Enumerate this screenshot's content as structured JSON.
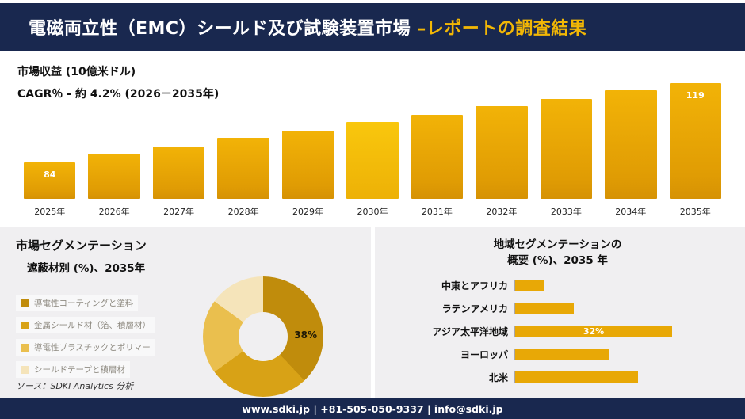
{
  "colors": {
    "navy": "#19284f",
    "gold_accent": "#f2b705",
    "bar_gold": "#e9a907",
    "panel_bg": "#f0eff1"
  },
  "header": {
    "title_main": "電磁両立性（EMC）シールド及び試験装置市場 ",
    "title_accent": "–レポートの調査結果"
  },
  "footer": {
    "text": "www.sdki.jp | +81-505-050-9337 | info@sdki.jp"
  },
  "source_note": "ソース：SDKI Analytics 分析",
  "chart_data": [
    {
      "type": "bar",
      "title": "市場収益 (10億米ドル)",
      "subtitle": "CAGR％ - 約 4.2% (2026－2035年)",
      "categories": [
        "2025年",
        "2026年",
        "2027年",
        "2028年",
        "2029年",
        "2030年",
        "2031年",
        "2032年",
        "2033年",
        "2034年",
        "2035年"
      ],
      "values": [
        84,
        88,
        91,
        95,
        98,
        102,
        105,
        109,
        112,
        116,
        119
      ],
      "value_labels": [
        "84",
        "",
        "",
        "",
        "",
        "",
        "",
        "",
        "",
        "",
        "119"
      ],
      "ylabel": "10億米ドル",
      "legend_position": "none",
      "grid": false
    },
    {
      "type": "pie",
      "title_line1": "市場セグメンテーション",
      "title_line2": "遮蔽材別 (%)、2035年",
      "hole": true,
      "segments": [
        {
          "label": "導電性コーティングと塗料",
          "value": 38,
          "color": "#c08c0c",
          "data_label": "38%"
        },
        {
          "label": "金属シールド材（箔、積層材）",
          "value": 27,
          "color": "#d8a216",
          "data_label": ""
        },
        {
          "label": "導電性プラスチックとポリマー",
          "value": 20,
          "color": "#eabf4e",
          "data_label": ""
        },
        {
          "label": "シールドテープと積層材",
          "value": 15,
          "color": "#f5e4ba",
          "data_label": ""
        }
      ]
    },
    {
      "type": "bar",
      "orientation": "horizontal",
      "title_line1": "地域セグメンテーションの",
      "title_line2": "概要 (%)、2035 年",
      "categories": [
        "中東とアフリカ",
        "ラテンアメリカ",
        "アジア太平洋地域",
        "ヨーロッパ",
        "北米"
      ],
      "values": [
        6,
        12,
        32,
        19,
        25
      ],
      "value_labels": [
        "",
        "",
        "32%",
        "",
        ""
      ],
      "bar_color": "#e8a806",
      "grid": false
    }
  ]
}
